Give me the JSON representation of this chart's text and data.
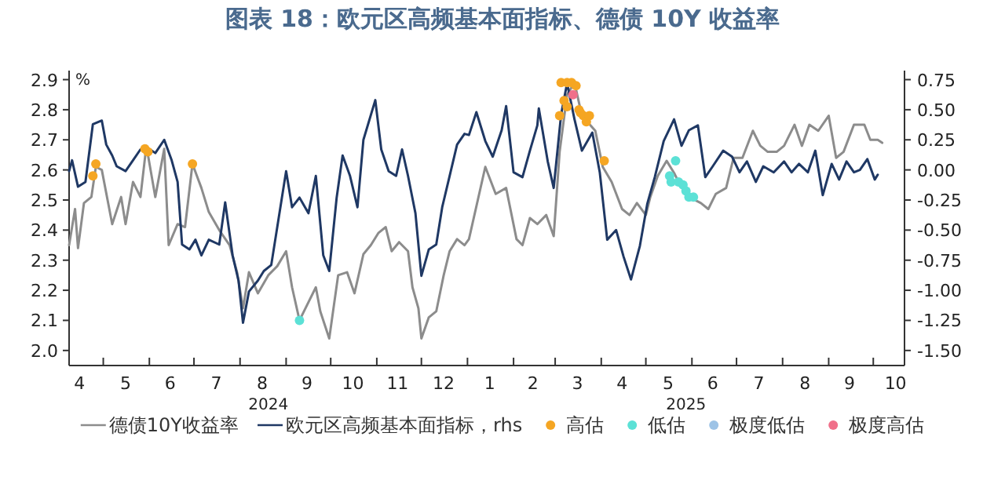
{
  "chart_data": {
    "type": "line",
    "title": "图表 18：欧元区高频基本面指标、德债 10Y 收益率",
    "ylabel": "%",
    "xlim": [
      "2024-04-08",
      "2025-10-22"
    ],
    "xticks": [
      {
        "value": "2024-05-01",
        "label": null
      },
      {
        "value": "2024-06-01",
        "label": null
      },
      {
        "value": "2024-07-01",
        "label": null
      },
      {
        "value": "2024-08-01",
        "label": null
      },
      {
        "value": "2024-09-01",
        "label": null
      },
      {
        "value": "2024-10-01",
        "label": null
      },
      {
        "value": "2024-11-01",
        "label": null
      },
      {
        "value": "2024-12-01",
        "label": null
      },
      {
        "value": "2025-01-01",
        "label": null
      },
      {
        "value": "2025-02-01",
        "label": null
      },
      {
        "value": "2025-03-01",
        "label": null
      },
      {
        "value": "2025-04-01",
        "label": null
      },
      {
        "value": "2025-05-01",
        "label": null
      },
      {
        "value": "2025-06-01",
        "label": null
      },
      {
        "value": "2025-07-01",
        "label": null
      },
      {
        "value": "2025-08-01",
        "label": null
      },
      {
        "value": "2025-09-01",
        "label": null
      },
      {
        "value": "2025-10-01",
        "label": null
      },
      {
        "value": "2024-04-15",
        "label": "4"
      },
      {
        "value": "2024-05-16",
        "label": "5"
      },
      {
        "value": "2024-06-15",
        "label": "6"
      },
      {
        "value": "2024-07-16",
        "label": "7"
      },
      {
        "value": "2024-08-16",
        "label": "8"
      },
      {
        "value": "2024-09-15",
        "label": "9"
      },
      {
        "value": "2024-10-16",
        "label": "10"
      },
      {
        "value": "2024-11-15",
        "label": "11"
      },
      {
        "value": "2024-12-16",
        "label": "12"
      },
      {
        "value": "2025-01-16",
        "label": "1"
      },
      {
        "value": "2025-02-14",
        "label": "2"
      },
      {
        "value": "2025-03-16",
        "label": "3"
      },
      {
        "value": "2025-04-15",
        "label": "4"
      },
      {
        "value": "2025-05-16",
        "label": "5"
      },
      {
        "value": "2025-06-15",
        "label": "6"
      },
      {
        "value": "2025-07-16",
        "label": "7"
      },
      {
        "value": "2025-08-16",
        "label": "8"
      },
      {
        "value": "2025-09-15",
        "label": "9"
      },
      {
        "value": "2025-10-16",
        "label": "10"
      }
    ],
    "ylim": [
      1.95,
      2.93
    ],
    "yticks": [
      {
        "value": 2.0,
        "label": "2.0"
      },
      2.1,
      2.2,
      2.3,
      2.4,
      2.5,
      2.6,
      2.7,
      2.8,
      2.9
    ],
    "y2lim": [
      -1.625,
      0.825
    ],
    "y2ticks": [
      {
        "value": 0.75,
        "label": "0.75"
      },
      {
        "value": 0.5,
        "label": "0.50"
      },
      {
        "value": 0.25,
        "label": "0.25"
      },
      {
        "value": 0,
        "label": "0.00"
      },
      {
        "value": -0.25,
        "label": "-0.25"
      },
      {
        "value": -0.5,
        "label": "-0.50"
      },
      {
        "value": -0.75,
        "label": "-0.75"
      },
      {
        "value": -1,
        "label": "-1.00"
      },
      {
        "value": -1.25,
        "label": "-1.25"
      },
      {
        "value": -1.5,
        "label": "-1.50"
      }
    ],
    "legend": "bottom",
    "annotations": [
      "2024",
      "2025"
    ],
    "series": [
      {
        "name": "德债10Y收益率",
        "color": "#8c8c8c",
        "x": [
          "2024-04-08",
          "2024-04-12",
          "2024-04-14",
          "2024-04-18",
          "2024-04-23",
          "2024-04-26",
          "2024-04-30",
          "2024-05-07",
          "2024-05-13",
          "2024-05-16",
          "2024-05-21",
          "2024-05-26",
          "2024-05-30",
          "2024-06-05",
          "2024-06-11",
          "2024-06-14",
          "2024-06-20",
          "2024-06-25",
          "2024-06-30",
          "2024-07-06",
          "2024-07-11",
          "2024-07-18",
          "2024-07-25",
          "2024-07-30",
          "2024-08-03",
          "2024-08-07",
          "2024-08-13",
          "2024-08-20",
          "2024-08-26",
          "2024-09-01",
          "2024-09-05",
          "2024-09-10",
          "2024-09-16",
          "2024-09-21",
          "2024-09-24",
          "2024-09-30",
          "2024-10-06",
          "2024-10-12",
          "2024-10-17",
          "2024-10-23",
          "2024-10-28",
          "2024-11-02",
          "2024-11-07",
          "2024-11-11",
          "2024-11-16",
          "2024-11-22",
          "2024-11-25",
          "2024-11-29",
          "2024-12-01",
          "2024-12-06",
          "2024-12-11",
          "2024-12-16",
          "2024-12-20",
          "2024-12-25",
          "2024-12-30",
          "2025-01-02",
          "2025-01-13",
          "2025-01-20",
          "2025-01-27",
          "2025-02-03",
          "2025-02-07",
          "2025-02-12",
          "2025-02-17",
          "2025-02-23",
          "2025-02-28",
          "2025-03-04",
          "2025-03-09",
          "2025-03-14",
          "2025-03-19",
          "2025-03-28",
          "2025-04-02",
          "2025-04-08",
          "2025-04-15",
          "2025-04-20",
          "2025-04-25",
          "2025-05-01",
          "2025-05-04",
          "2025-05-09",
          "2025-05-15",
          "2025-05-20",
          "2025-05-23",
          "2025-05-30",
          "2025-06-07",
          "2025-06-12",
          "2025-06-17",
          "2025-06-24",
          "2025-06-29",
          "2025-07-05",
          "2025-07-12",
          "2025-07-17",
          "2025-07-22",
          "2025-07-28",
          "2025-08-02",
          "2025-08-09",
          "2025-08-14",
          "2025-08-19",
          "2025-08-25",
          "2025-09-01",
          "2025-09-06",
          "2025-09-11",
          "2025-09-18",
          "2025-09-25",
          "2025-09-29",
          "2025-10-04",
          "2025-10-07"
        ],
        "values": [
          2.35,
          2.47,
          2.34,
          2.49,
          2.51,
          2.61,
          2.6,
          2.42,
          2.51,
          2.42,
          2.56,
          2.51,
          2.68,
          2.51,
          2.67,
          2.35,
          2.42,
          2.41,
          2.62,
          2.54,
          2.46,
          2.4,
          2.35,
          2.26,
          2.14,
          2.26,
          2.19,
          2.25,
          2.28,
          2.33,
          2.21,
          2.1,
          2.16,
          2.21,
          2.13,
          2.04,
          2.25,
          2.26,
          2.19,
          2.32,
          2.35,
          2.39,
          2.41,
          2.33,
          2.36,
          2.33,
          2.21,
          2.14,
          2.04,
          2.11,
          2.13,
          2.25,
          2.33,
          2.37,
          2.35,
          2.37,
          2.61,
          2.52,
          2.54,
          2.37,
          2.35,
          2.44,
          2.42,
          2.45,
          2.38,
          2.66,
          2.85,
          2.89,
          2.78,
          2.73,
          2.61,
          2.56,
          2.47,
          2.45,
          2.49,
          2.45,
          2.51,
          2.58,
          2.63,
          2.59,
          2.56,
          2.51,
          2.49,
          2.47,
          2.52,
          2.54,
          2.64,
          2.64,
          2.73,
          2.68,
          2.66,
          2.66,
          2.68,
          2.75,
          2.68,
          2.75,
          2.73,
          2.78,
          2.64,
          2.66,
          2.75,
          2.75,
          2.7,
          2.7,
          2.69
        ]
      },
      {
        "name": "欧元区高频基本面指标，rhs",
        "axis": "y2",
        "color": "#1f3864",
        "x": [
          "2024-04-08",
          "2024-04-10",
          "2024-04-14",
          "2024-04-19",
          "2024-04-24",
          "2024-04-30",
          "2024-05-03",
          "2024-05-07",
          "2024-05-10",
          "2024-05-16",
          "2024-05-21",
          "2024-05-26",
          "2024-05-30",
          "2024-06-05",
          "2024-06-11",
          "2024-06-16",
          "2024-06-20",
          "2024-06-23",
          "2024-06-28",
          "2024-07-02",
          "2024-07-06",
          "2024-07-11",
          "2024-07-18",
          "2024-07-22",
          "2024-07-27",
          "2024-07-31",
          "2024-08-03",
          "2024-08-07",
          "2024-08-13",
          "2024-08-17",
          "2024-08-22",
          "2024-08-27",
          "2024-09-01",
          "2024-09-05",
          "2024-09-10",
          "2024-09-16",
          "2024-09-21",
          "2024-09-26",
          "2024-09-30",
          "2024-10-05",
          "2024-10-09",
          "2024-10-14",
          "2024-10-19",
          "2024-10-23",
          "2024-10-31",
          "2024-11-04",
          "2024-11-09",
          "2024-11-14",
          "2024-11-18",
          "2024-11-22",
          "2024-11-27",
          "2024-12-01",
          "2024-12-06",
          "2024-12-11",
          "2024-12-15",
          "2024-12-20",
          "2024-12-25",
          "2024-12-30",
          "2025-01-02",
          "2025-01-07",
          "2025-01-13",
          "2025-01-18",
          "2025-01-24",
          "2025-01-27",
          "2025-02-01",
          "2025-02-07",
          "2025-02-12",
          "2025-02-17",
          "2025-02-18",
          "2025-02-24",
          "2025-02-28",
          "2025-03-05",
          "2025-03-09",
          "2025-03-14",
          "2025-03-19",
          "2025-03-26",
          "2025-03-31",
          "2025-04-05",
          "2025-04-11",
          "2025-04-16",
          "2025-04-21",
          "2025-04-27",
          "2025-05-02",
          "2025-05-07",
          "2025-05-13",
          "2025-05-20",
          "2025-05-25",
          "2025-05-30",
          "2025-06-05",
          "2025-06-10",
          "2025-06-15",
          "2025-06-22",
          "2025-06-28",
          "2025-07-03",
          "2025-07-08",
          "2025-07-14",
          "2025-07-19",
          "2025-07-26",
          "2025-08-02",
          "2025-08-07",
          "2025-08-12",
          "2025-08-18",
          "2025-08-23",
          "2025-08-28",
          "2025-09-03",
          "2025-09-08",
          "2025-09-13",
          "2025-09-18",
          "2025-09-22",
          "2025-09-27",
          "2025-10-02",
          "2025-10-04"
        ],
        "values": [
          -0.01,
          0.08,
          -0.14,
          -0.1,
          0.38,
          0.41,
          0.21,
          0.12,
          0.03,
          -0.01,
          0.08,
          0.17,
          0.19,
          0.14,
          0.25,
          0.08,
          -0.1,
          -0.62,
          -0.66,
          -0.58,
          -0.71,
          -0.58,
          -0.62,
          -0.27,
          -0.71,
          -0.92,
          -1.27,
          -1.01,
          -0.92,
          -0.84,
          -0.79,
          -0.4,
          -0.01,
          -0.31,
          -0.23,
          -0.36,
          -0.05,
          -0.71,
          -0.84,
          -0.23,
          0.12,
          -0.05,
          -0.31,
          0.25,
          0.58,
          0.17,
          -0.01,
          -0.05,
          0.17,
          -0.05,
          -0.36,
          -0.88,
          -0.66,
          -0.62,
          -0.31,
          -0.05,
          0.21,
          0.3,
          0.29,
          0.48,
          0.24,
          0.11,
          0.33,
          0.53,
          -0.02,
          -0.06,
          0.16,
          0.37,
          0.51,
          0.07,
          -0.15,
          0.46,
          0.72,
          0.42,
          0.16,
          0.31,
          -0.02,
          -0.58,
          -0.5,
          -0.72,
          -0.91,
          -0.63,
          -0.28,
          -0.06,
          0.24,
          0.42,
          0.2,
          0.33,
          0.37,
          -0.06,
          0.03,
          0.16,
          0.11,
          -0.02,
          0.07,
          -0.1,
          0.03,
          -0.02,
          0.07,
          -0.02,
          0.05,
          -0.02,
          0.16,
          -0.21,
          0.05,
          -0.08,
          0.07,
          -0.02,
          0.0,
          0.09,
          -0.08,
          -0.04
        ]
      },
      {
        "name": "高估",
        "type": "scatter",
        "marker": "circle",
        "color": "#f5a623",
        "x": [
          "2024-04-24",
          "2024-04-26",
          "2024-05-29",
          "2024-05-31",
          "2024-06-30",
          "2025-03-04",
          "2025-03-05",
          "2025-03-07",
          "2025-03-09",
          "2025-03-09",
          "2025-03-12",
          "2025-03-15",
          "2025-03-17",
          "2025-03-18",
          "2025-03-20",
          "2025-03-22",
          "2025-03-24",
          "2025-04-03"
        ],
        "values": [
          2.58,
          2.62,
          2.67,
          2.66,
          2.62,
          2.78,
          2.89,
          2.83,
          2.89,
          2.81,
          2.89,
          2.88,
          2.8,
          2.79,
          2.78,
          2.76,
          2.78,
          2.63
        ]
      },
      {
        "name": "低估",
        "type": "scatter",
        "marker": "circle",
        "color": "#5ce1d6",
        "x": [
          "2024-09-10",
          "2025-05-17",
          "2025-05-18",
          "2025-05-21",
          "2025-05-23",
          "2025-05-26",
          "2025-05-28",
          "2025-05-30",
          "2025-06-02"
        ],
        "values": [
          2.1,
          2.58,
          2.56,
          2.63,
          2.56,
          2.55,
          2.53,
          2.51,
          2.51
        ]
      },
      {
        "name": "极度低估",
        "type": "scatter",
        "marker": "circle",
        "color": "#9dc3e6"
      },
      {
        "name": "极度高估",
        "type": "scatter",
        "marker": "circle",
        "color": "#f0708a",
        "x": [
          "2025-03-13"
        ],
        "values": [
          2.85
        ]
      }
    ]
  }
}
